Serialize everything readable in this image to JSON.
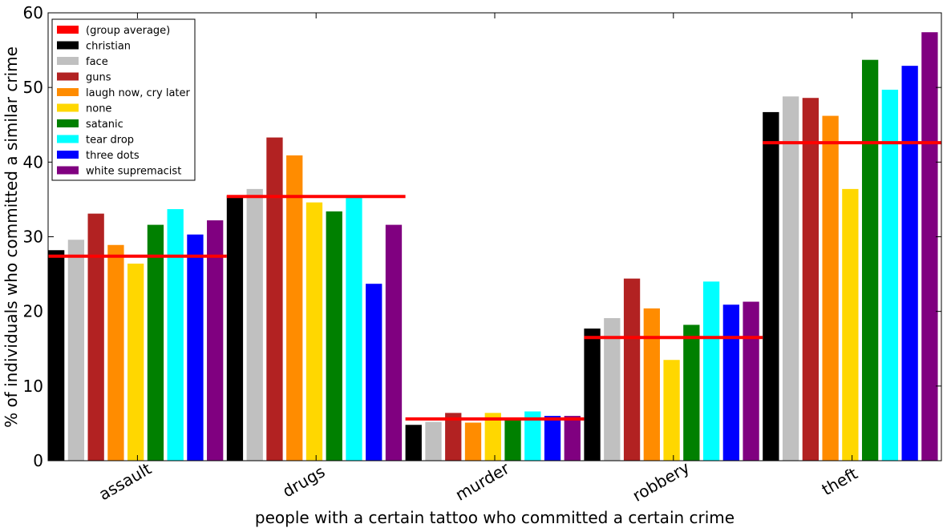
{
  "chart_data": {
    "type": "bar",
    "xlabel": "people with a certain tattoo who committed a certain crime",
    "ylabel": "% of individuals who committed a similar crime",
    "ylim": [
      0,
      60
    ],
    "yticks": [
      0,
      10,
      20,
      30,
      40,
      50,
      60
    ],
    "grid": false,
    "legend_position": "top-left",
    "categories": [
      "assault",
      "drugs",
      "murder",
      "robbery",
      "theft"
    ],
    "average_label": "(group average)",
    "average_color": "#ff0000",
    "group_averages": [
      27.4,
      35.4,
      5.6,
      16.5,
      42.6
    ],
    "series": [
      {
        "name": "christian",
        "color": "#000000",
        "values": [
          28.2,
          35.5,
          4.8,
          17.7,
          46.7
        ]
      },
      {
        "name": "face",
        "color": "#c0c0c0",
        "values": [
          29.6,
          36.4,
          5.2,
          19.1,
          48.8
        ]
      },
      {
        "name": "guns",
        "color": "#b22222",
        "values": [
          33.1,
          43.3,
          6.4,
          24.4,
          48.6
        ]
      },
      {
        "name": "laugh now, cry later",
        "color": "#ff8c00",
        "values": [
          28.9,
          40.9,
          5.1,
          20.4,
          46.2
        ]
      },
      {
        "name": "none",
        "color": "#ffd700",
        "values": [
          26.4,
          34.6,
          6.4,
          13.5,
          36.4
        ]
      },
      {
        "name": "satanic",
        "color": "#008000",
        "values": [
          31.6,
          33.4,
          5.7,
          18.2,
          53.7
        ]
      },
      {
        "name": "tear drop",
        "color": "#00ffff",
        "values": [
          33.7,
          35.3,
          6.6,
          24.0,
          49.7
        ]
      },
      {
        "name": "three dots",
        "color": "#0000ff",
        "values": [
          30.3,
          23.7,
          6.0,
          20.9,
          52.9
        ]
      },
      {
        "name": "white supremacist",
        "color": "#800080",
        "values": [
          32.2,
          31.6,
          6.0,
          21.3,
          57.4
        ]
      }
    ]
  }
}
